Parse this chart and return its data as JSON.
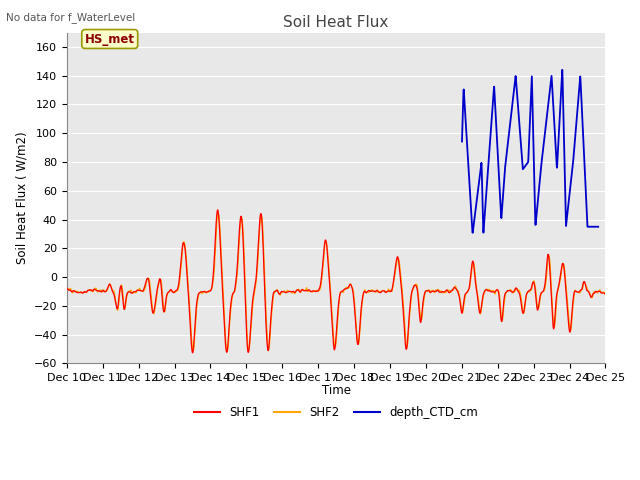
{
  "title": "Soil Heat Flux",
  "ylabel": "Soil Heat Flux ( W/m2)",
  "xlabel": "Time",
  "top_label": "No data for f_WaterLevel",
  "station_label": "HS_met",
  "ylim": [
    -60,
    170
  ],
  "yticks": [
    -60,
    -40,
    -20,
    0,
    20,
    40,
    60,
    80,
    100,
    120,
    140,
    160
  ],
  "colors": {
    "SHF1": "#ff0000",
    "SHF2": "#ffa500",
    "depth_CTD_cm": "#0000cc"
  },
  "background_color": "#e8e8e8",
  "grid_color": "#ffffff",
  "xtick_labels": [
    "Dec 10",
    "Dec 11",
    "Dec 12",
    "Dec 13",
    "Dec 14",
    "Dec 15",
    "Dec 16",
    "Dec 17",
    "Dec 18",
    "Dec 19",
    "Dec 20",
    "Dec 21",
    "Dec 22",
    "Dec 23",
    "Dec 24",
    "Dec 25"
  ],
  "n_points_per_day": 144
}
